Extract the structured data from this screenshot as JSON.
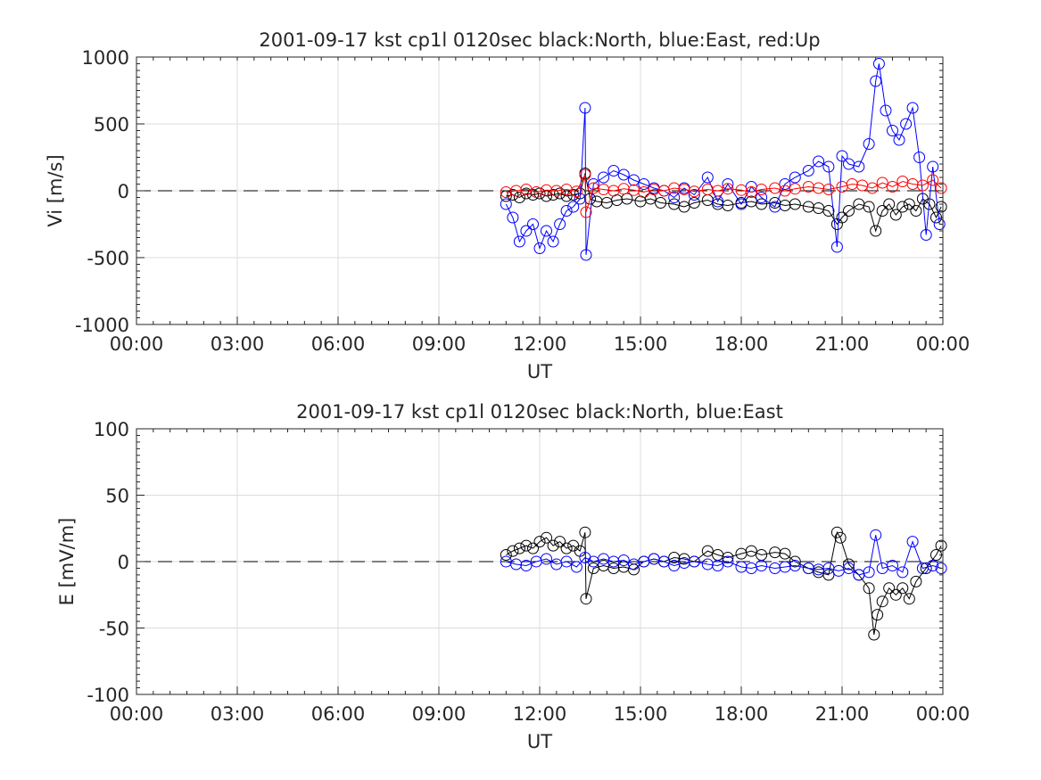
{
  "colors": {
    "north": "#000000",
    "east": "#0000ff",
    "up": "#ff0000",
    "grid": "#dcdcdc",
    "axis": "#262626"
  },
  "chart_data": [
    {
      "type": "scatter",
      "title": "2001-09-17 kst cp1l 0120sec black:North, blue:East, red:Up",
      "xlabel": "UT",
      "ylabel": "Vi [m/s]",
      "xlim": [
        0,
        24
      ],
      "ylim": [
        -1000,
        1000
      ],
      "xticks": [
        0,
        3,
        6,
        9,
        12,
        15,
        18,
        21,
        24
      ],
      "xticklabels": [
        "00:00",
        "03:00",
        "06:00",
        "09:00",
        "12:00",
        "15:00",
        "18:00",
        "21:00",
        "00:00"
      ],
      "yticks": [
        -1000,
        -500,
        0,
        500,
        1000
      ],
      "yticklabels": [
        "-1000",
        "-500",
        "0",
        "500",
        "1000"
      ],
      "grid": true,
      "zero_line": "dashed",
      "series": [
        {
          "name": "North",
          "color": "#000000",
          "x": [
            11.0,
            11.2,
            11.4,
            11.6,
            11.8,
            12.0,
            12.2,
            12.4,
            12.6,
            12.8,
            13.0,
            13.2,
            13.35,
            13.5,
            13.7,
            14.0,
            14.3,
            14.6,
            15.0,
            15.3,
            15.6,
            16.0,
            16.3,
            16.6,
            17.0,
            17.3,
            17.6,
            18.0,
            18.3,
            18.6,
            19.0,
            19.3,
            19.6,
            20.0,
            20.3,
            20.6,
            20.85,
            21.0,
            21.2,
            21.5,
            21.8,
            22.0,
            22.2,
            22.4,
            22.6,
            22.8,
            23.0,
            23.2,
            23.4,
            23.6,
            23.8,
            23.95
          ],
          "y": [
            -40,
            -30,
            -50,
            -20,
            -30,
            -20,
            -40,
            -30,
            -20,
            -40,
            -30,
            -20,
            130,
            -60,
            -80,
            -90,
            -70,
            -60,
            -80,
            -60,
            -90,
            -100,
            -120,
            -90,
            -70,
            -100,
            -110,
            -90,
            -80,
            -100,
            -90,
            -110,
            -100,
            -120,
            -130,
            -150,
            -250,
            -200,
            -150,
            -100,
            -120,
            -300,
            -150,
            -100,
            -180,
            -120,
            -100,
            -150,
            -60,
            -100,
            -200,
            -120
          ]
        },
        {
          "name": "East",
          "color": "#0000ff",
          "x": [
            11.0,
            11.2,
            11.4,
            11.6,
            11.8,
            12.0,
            12.2,
            12.4,
            12.6,
            12.8,
            13.0,
            13.2,
            13.35,
            13.38,
            13.6,
            13.9,
            14.2,
            14.5,
            14.8,
            15.1,
            15.4,
            15.7,
            16.0,
            16.3,
            16.6,
            17.0,
            17.3,
            17.6,
            18.0,
            18.3,
            18.6,
            19.0,
            19.3,
            19.6,
            20.0,
            20.3,
            20.6,
            20.85,
            21.0,
            21.2,
            21.5,
            21.8,
            22.0,
            22.1,
            22.3,
            22.5,
            22.7,
            22.9,
            23.1,
            23.3,
            23.5,
            23.7,
            23.9
          ],
          "y": [
            -100,
            -200,
            -380,
            -300,
            -250,
            -430,
            -300,
            -380,
            -250,
            -150,
            -120,
            -60,
            620,
            -480,
            50,
            100,
            150,
            120,
            80,
            50,
            20,
            0,
            -50,
            20,
            -30,
            100,
            -80,
            50,
            -100,
            30,
            -50,
            -120,
            50,
            100,
            150,
            220,
            180,
            -420,
            260,
            200,
            180,
            350,
            820,
            950,
            600,
            450,
            380,
            500,
            620,
            250,
            -330,
            180,
            -250
          ]
        },
        {
          "name": "Up",
          "color": "#ff0000",
          "x": [
            11.0,
            11.3,
            11.6,
            11.9,
            12.2,
            12.5,
            12.8,
            13.1,
            13.35,
            13.38,
            13.6,
            13.9,
            14.2,
            14.5,
            14.8,
            15.1,
            15.4,
            15.7,
            16.0,
            16.3,
            16.6,
            17.0,
            17.3,
            17.6,
            18.0,
            18.3,
            18.6,
            19.0,
            19.3,
            19.6,
            20.0,
            20.3,
            20.6,
            21.0,
            21.3,
            21.6,
            21.9,
            22.2,
            22.5,
            22.8,
            23.1,
            23.4,
            23.7,
            23.95
          ],
          "y": [
            -10,
            0,
            10,
            -10,
            5,
            0,
            10,
            -5,
            120,
            -160,
            20,
            10,
            0,
            15,
            5,
            -10,
            10,
            0,
            20,
            10,
            -5,
            10,
            0,
            15,
            5,
            -10,
            10,
            20,
            0,
            15,
            30,
            20,
            10,
            30,
            50,
            40,
            20,
            60,
            30,
            70,
            50,
            40,
            80,
            20
          ]
        }
      ]
    },
    {
      "type": "scatter",
      "title": "2001-09-17 kst cp1l 0120sec black:North, blue:East",
      "xlabel": "UT",
      "ylabel": "E [mV/m]",
      "xlim": [
        0,
        24
      ],
      "ylim": [
        -100,
        100
      ],
      "xticks": [
        0,
        3,
        6,
        9,
        12,
        15,
        18,
        21,
        24
      ],
      "xticklabels": [
        "00:00",
        "03:00",
        "06:00",
        "09:00",
        "12:00",
        "15:00",
        "18:00",
        "21:00",
        "00:00"
      ],
      "yticks": [
        -100,
        -50,
        0,
        50,
        100
      ],
      "yticklabels": [
        "-100",
        "-50",
        "0",
        "50",
        "100"
      ],
      "grid": true,
      "zero_line": "dashed",
      "series": [
        {
          "name": "North",
          "color": "#000000",
          "x": [
            11.0,
            11.2,
            11.4,
            11.6,
            11.8,
            12.0,
            12.2,
            12.4,
            12.6,
            12.8,
            13.0,
            13.2,
            13.35,
            13.38,
            13.6,
            13.9,
            14.2,
            14.5,
            14.8,
            15.1,
            15.4,
            15.7,
            16.0,
            16.3,
            16.6,
            17.0,
            17.3,
            17.6,
            18.0,
            18.3,
            18.6,
            19.0,
            19.3,
            19.6,
            20.0,
            20.3,
            20.6,
            20.85,
            20.95,
            21.2,
            21.5,
            21.8,
            21.95,
            22.05,
            22.2,
            22.4,
            22.6,
            22.8,
            23.0,
            23.2,
            23.5,
            23.8,
            23.95
          ],
          "y": [
            5,
            8,
            10,
            12,
            10,
            15,
            18,
            12,
            15,
            10,
            12,
            8,
            22,
            -28,
            -5,
            -3,
            -5,
            -4,
            -6,
            0,
            2,
            0,
            3,
            2,
            0,
            8,
            5,
            3,
            6,
            8,
            5,
            7,
            6,
            0,
            -5,
            -8,
            -10,
            22,
            18,
            -2,
            -10,
            -20,
            -55,
            -40,
            -30,
            -20,
            -25,
            -20,
            -28,
            -15,
            -5,
            5,
            12
          ]
        },
        {
          "name": "East",
          "color": "#0000ff",
          "x": [
            11.0,
            11.3,
            11.6,
            11.9,
            12.2,
            12.5,
            12.8,
            13.1,
            13.35,
            13.6,
            13.9,
            14.2,
            14.5,
            14.8,
            15.1,
            15.4,
            15.7,
            16.0,
            16.3,
            16.6,
            17.0,
            17.3,
            17.6,
            18.0,
            18.3,
            18.6,
            19.0,
            19.3,
            19.6,
            20.0,
            20.3,
            20.6,
            20.9,
            21.2,
            21.5,
            21.8,
            22.0,
            22.2,
            22.5,
            22.8,
            23.1,
            23.4,
            23.7,
            23.95
          ],
          "y": [
            0,
            -2,
            -3,
            0,
            2,
            -2,
            0,
            -4,
            3,
            0,
            2,
            0,
            1,
            -2,
            0,
            2,
            0,
            -3,
            -1,
            0,
            -2,
            -3,
            0,
            -4,
            -5,
            -3,
            -5,
            -4,
            -3,
            -5,
            -6,
            -5,
            -7,
            -5,
            -10,
            -8,
            20,
            -5,
            -3,
            -8,
            15,
            -5,
            -3,
            -5
          ]
        }
      ]
    }
  ]
}
